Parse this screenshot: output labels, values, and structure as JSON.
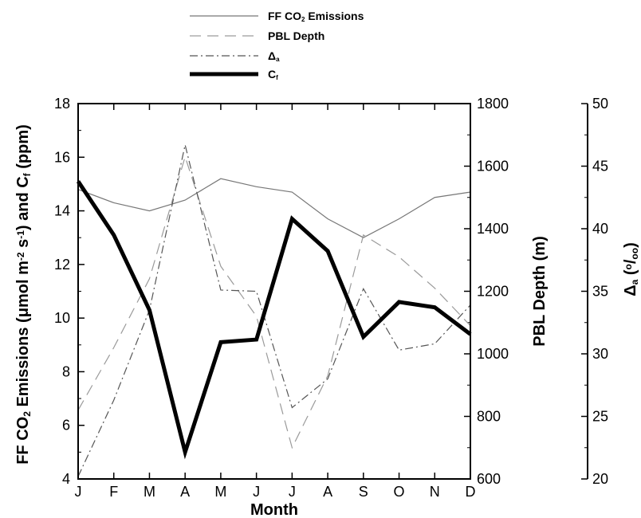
{
  "chart_data": {
    "type": "line",
    "categories": [
      "J",
      "F",
      "M",
      "A",
      "M",
      "J",
      "J",
      "A",
      "S",
      "O",
      "N",
      "D"
    ],
    "xlabel": "Month",
    "axes": {
      "left": {
        "label_parts": [
          "FF CO",
          "2",
          " Emissions (",
          "μ",
          "mol m",
          "-2",
          " s",
          "-1",
          ") and C",
          "f",
          " (ppm)"
        ],
        "ylim": [
          4,
          18
        ],
        "ticks": [
          4,
          6,
          8,
          10,
          12,
          14,
          16,
          18
        ]
      },
      "right1": {
        "label": "PBL Depth (m)",
        "ylim": [
          600,
          1800
        ],
        "ticks": [
          600,
          800,
          1000,
          1200,
          1400,
          1600,
          1800
        ]
      },
      "right2": {
        "label_parts": [
          "Δ",
          "a",
          " (",
          "o",
          "/",
          "oo",
          ")"
        ],
        "ylim": [
          20,
          50
        ],
        "ticks": [
          20,
          25,
          30,
          35,
          40,
          45,
          50
        ]
      }
    },
    "series": [
      {
        "key": "ff",
        "name": "FF CO2 Emissions",
        "legend_parts": [
          "FF CO",
          "2",
          " Emissions"
        ],
        "axis": "left",
        "style": "solid-thin",
        "color": "#777777",
        "values": [
          14.8,
          14.3,
          14.0,
          14.4,
          15.2,
          14.9,
          14.7,
          13.7,
          13.0,
          13.7,
          14.5,
          14.7
        ]
      },
      {
        "key": "pbl",
        "name": "PBL Depth",
        "legend_parts": [
          "PBL Depth"
        ],
        "axis": "right1",
        "style": "dashed",
        "color": "#9a9a9a",
        "values": [
          820,
          1020,
          1240,
          1630,
          1280,
          1120,
          700,
          930,
          1380,
          1310,
          1210,
          1090
        ]
      },
      {
        "key": "delta",
        "name": "Delta_a",
        "legend_parts": [
          "Δ",
          "a"
        ],
        "axis": "right2",
        "style": "dashdot",
        "color": "#555555",
        "values": [
          20.2,
          26.3,
          33.5,
          46.7,
          35.1,
          35.0,
          25.7,
          28.0,
          35.2,
          30.3,
          30.8,
          33.9
        ]
      },
      {
        "key": "cf",
        "name": "Cf",
        "legend_parts": [
          "C",
          "f"
        ],
        "axis": "left",
        "style": "solid-thick",
        "color": "#000000",
        "values": [
          15.1,
          13.1,
          10.3,
          5.0,
          9.1,
          9.2,
          13.7,
          12.5,
          9.3,
          10.6,
          10.4,
          9.4
        ]
      }
    ],
    "grid": false,
    "legend_placement": "top-center"
  }
}
